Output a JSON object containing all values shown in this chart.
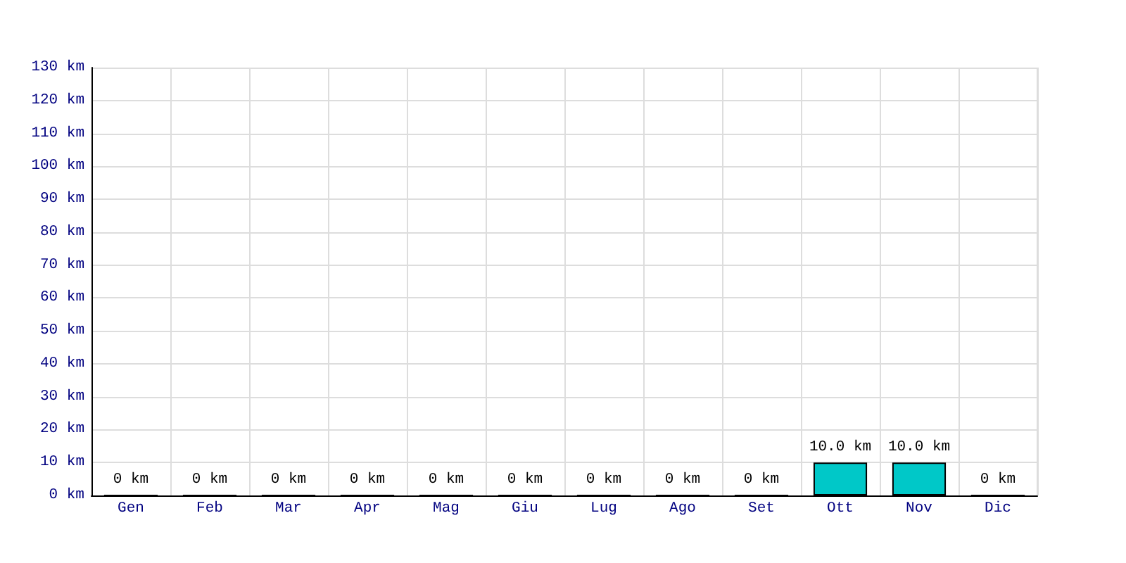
{
  "chart_data": {
    "type": "bar",
    "categories": [
      "Gen",
      "Feb",
      "Mar",
      "Apr",
      "Mag",
      "Giu",
      "Lug",
      "Ago",
      "Set",
      "Ott",
      "Nov",
      "Dic"
    ],
    "values": [
      0,
      0,
      0,
      0,
      0,
      0,
      0,
      0,
      0,
      10,
      10,
      0
    ],
    "value_labels": [
      "0 km",
      "0 km",
      "0 km",
      "0 km",
      "0 km",
      "0 km",
      "0 km",
      "0 km",
      "0 km",
      "10.0 km",
      "10.0 km",
      "0 km"
    ],
    "color": "#00c8c8",
    "ylim": [
      0,
      130
    ],
    "yticks": [
      {
        "value": 0,
        "label": "0 km"
      },
      {
        "value": 10,
        "label": "10 km"
      },
      {
        "value": 20,
        "label": "20 km"
      },
      {
        "value": 30,
        "label": "30 km"
      },
      {
        "value": 40,
        "label": "40 km"
      },
      {
        "value": 50,
        "label": "50 km"
      },
      {
        "value": 60,
        "label": "60 km"
      },
      {
        "value": 70,
        "label": "70 km"
      },
      {
        "value": 80,
        "label": "80 km"
      },
      {
        "value": 90,
        "label": "90 km"
      },
      {
        "value": 100,
        "label": "100 km"
      },
      {
        "value": 110,
        "label": "110 km"
      },
      {
        "value": 120,
        "label": "120 km"
      },
      {
        "value": 130,
        "label": "130 km"
      }
    ],
    "grid": true
  }
}
